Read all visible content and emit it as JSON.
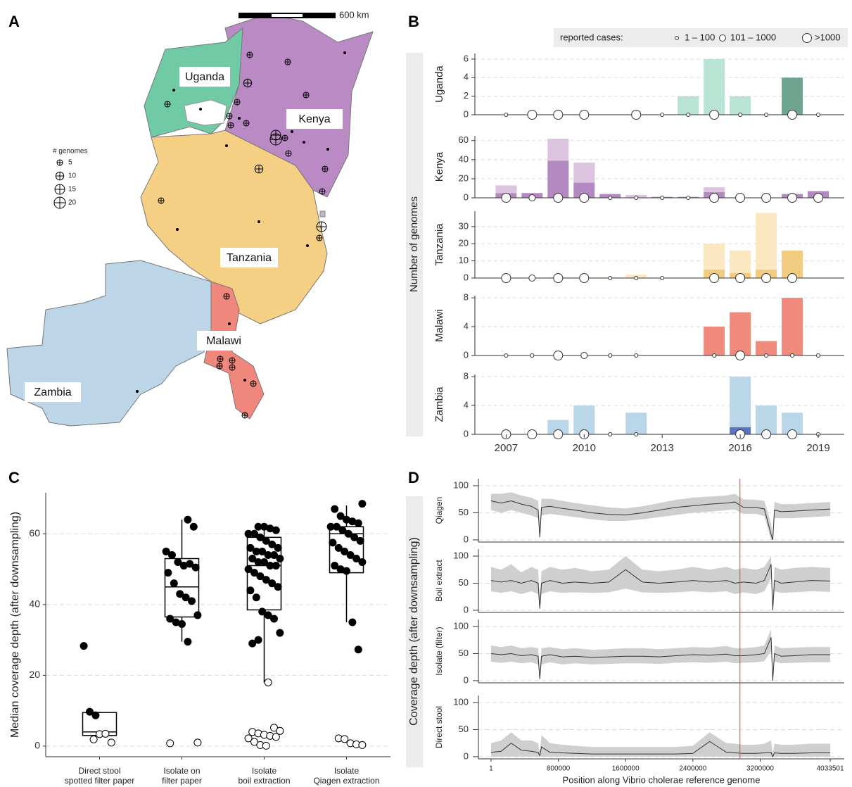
{
  "panel_labels": [
    "A",
    "B",
    "C",
    "D"
  ],
  "map": {
    "scale_label": "600 km",
    "legend": {
      "title": "# genomes",
      "sizes": [
        5,
        10,
        15,
        20
      ]
    },
    "countries": [
      {
        "name": "Uganda",
        "color": "#6fcaa5"
      },
      {
        "name": "Kenya",
        "color": "#b98ac4"
      },
      {
        "name": "Tanzania",
        "color": "#f5cf84"
      },
      {
        "name": "Malawi",
        "color": "#ef877c"
      },
      {
        "name": "Zambia",
        "color": "#bcd6e8"
      }
    ],
    "sites": [
      5,
      5,
      1,
      1,
      5,
      10,
      5,
      1,
      5,
      5,
      5,
      1,
      5,
      15,
      20,
      5,
      1,
      5,
      1,
      1,
      5,
      5,
      1,
      10,
      5,
      1,
      1,
      15,
      5,
      1,
      5,
      1,
      5,
      5,
      5,
      5,
      1,
      5,
      1,
      5
    ]
  },
  "chart_data": [
    {
      "type": "bar",
      "ylabel": "Number of genomes",
      "legend": {
        "title": "reported cases:",
        "labels": [
          "1 – 100",
          "101 – 1000",
          ">1000"
        ]
      },
      "x": [
        2007,
        2008,
        2009,
        2010,
        2011,
        2012,
        2013,
        2014,
        2015,
        2016,
        2017,
        2018,
        2019
      ],
      "xlim": [
        2005.8,
        2020
      ],
      "xticks": [
        2007,
        2010,
        2013,
        2016,
        2019
      ],
      "grid": true,
      "panels": [
        {
          "label": "Uganda",
          "ylim": [
            0,
            6.6
          ],
          "yticks": [
            0,
            2,
            4,
            6
          ],
          "series": [
            {
              "color": "#6fa58f",
              "values": [
                null,
                null,
                null,
                null,
                null,
                null,
                null,
                null,
                null,
                null,
                null,
                4,
                null
              ]
            },
            {
              "color": "#b9e3d3",
              "values": [
                null,
                null,
                null,
                null,
                null,
                null,
                null,
                2,
                6,
                2,
                null,
                null,
                null
              ]
            }
          ],
          "cases": [
            "1 – 100",
            ">1000",
            ">1000",
            ">1000",
            null,
            ">1000",
            "1 – 100",
            "1 – 100",
            ">1000",
            "1 – 100",
            "1 – 100",
            ">1000",
            "1 – 100"
          ]
        },
        {
          "label": "Kenya",
          "ylim": [
            0,
            65
          ],
          "yticks": [
            0,
            20,
            40,
            60
          ],
          "series": [
            {
              "color": "#b488c0",
              "values": [
                5,
                5,
                39,
                16,
                4,
                null,
                1,
                1,
                6,
                null,
                null,
                4,
                7
              ]
            },
            {
              "color": "#dcc4e0",
              "values": [
                8,
                null,
                23,
                21,
                null,
                3,
                null,
                null,
                5,
                null,
                null,
                null,
                null
              ]
            }
          ],
          "cases": [
            ">1000",
            "101 – 1000",
            ">1000",
            ">1000",
            "1 – 100",
            "1 – 100",
            "1 – 100",
            "1 – 100",
            ">1000",
            ">1000",
            ">1000",
            ">1000",
            ">1000"
          ]
        },
        {
          "label": "Tanzania",
          "ylim": [
            0,
            39
          ],
          "yticks": [
            0,
            10,
            20,
            30
          ],
          "series": [
            {
              "color": "#f2cc80",
              "values": [
                null,
                null,
                null,
                null,
                null,
                null,
                null,
                null,
                5,
                3,
                5,
                16,
                null
              ]
            },
            {
              "color": "#fbe7c0",
              "values": [
                null,
                null,
                0.5,
                null,
                0.5,
                2,
                null,
                null,
                15,
                13,
                33,
                null,
                null
              ]
            }
          ],
          "cases": [
            ">1000",
            "101 – 1000",
            ">1000",
            ">1000",
            "1 – 100",
            "1 – 100",
            "1 – 100",
            null,
            ">1000",
            ">1000",
            ">1000",
            ">1000",
            null
          ]
        },
        {
          "label": "Malawi",
          "ylim": [
            0,
            8.3
          ],
          "yticks": [
            0,
            4,
            8
          ],
          "series": [
            {
              "color": "#f08a7c",
              "values": [
                null,
                null,
                null,
                null,
                null,
                null,
                null,
                null,
                4,
                6,
                2,
                8,
                null
              ]
            }
          ],
          "cases": [
            "1 – 100",
            "1 – 100",
            ">1000",
            "101 – 1000",
            "1 – 100",
            "1 – 100",
            null,
            null,
            "1 – 100",
            ">1000",
            "1 – 100",
            "1 – 100",
            "1 – 100"
          ]
        },
        {
          "label": "Zambia",
          "ylim": [
            0,
            8.3
          ],
          "yticks": [
            0,
            4,
            8
          ],
          "series": [
            {
              "color": "#5a74c0",
              "values": [
                null,
                null,
                null,
                null,
                null,
                null,
                null,
                null,
                null,
                1,
                null,
                null,
                null
              ]
            },
            {
              "color": "#b9d7e8",
              "values": [
                null,
                null,
                2,
                4,
                null,
                3,
                null,
                null,
                null,
                7,
                4,
                3,
                null
              ]
            }
          ],
          "cases": [
            ">1000",
            ">1000",
            ">1000",
            ">1000",
            "1 – 100",
            "1 – 100",
            null,
            null,
            null,
            ">1000",
            ">1000",
            ">1000",
            "1 – 100"
          ]
        }
      ]
    },
    {
      "type": "box",
      "ylabel": "Median coverage depth (after downsampling)",
      "categories": [
        [
          "Direct stool",
          "spotted filter paper"
        ],
        [
          "Isolate on",
          "filter paper"
        ],
        [
          "Isolate",
          "boil extraction"
        ],
        [
          "Isolate",
          "Qiagen extraction"
        ]
      ],
      "ylim": [
        -3,
        71.6
      ],
      "yticks": [
        0,
        20,
        40,
        60
      ],
      "grid": true,
      "boxes": [
        {
          "whisker_low": 3,
          "q1": 3,
          "median": 4,
          "q3": 9.5,
          "whisker_high": 9.7
        },
        {
          "whisker_low": 29.5,
          "q1": 36.5,
          "median": 45,
          "q3": 53,
          "whisker_high": 64
        },
        {
          "whisker_low": 18,
          "q1": 38.5,
          "median": 51,
          "q3": 59,
          "whisker_high": 63
        },
        {
          "whisker_low": 35,
          "q1": 49,
          "median": 60,
          "q3": 62,
          "whisker_high": 68
        }
      ],
      "series": [
        {
          "color": "#000000",
          "fill": "#000000",
          "values": [
            [
              28.3,
              9.7,
              8.7
            ],
            [
              64,
              62,
              55,
              54,
              52,
              51,
              51.5,
              50.5,
              49,
              46,
              43,
              42,
              41,
              37,
              36,
              35,
              34.5,
              29.5
            ],
            [
              62,
              62,
              61.5,
              61,
              60,
              60,
              59,
              58,
              57,
              56,
              56,
              55,
              55,
              54,
              54,
              53,
              53,
              52,
              52,
              51,
              51,
              50,
              49,
              48,
              47,
              46,
              45,
              44,
              42,
              38,
              37,
              36,
              32,
              29,
              30
            ],
            [
              68.5,
              67,
              65,
              64,
              63.5,
              63,
              62,
              62,
              61,
              60,
              59,
              58,
              57.5,
              56,
              55,
              54,
              53,
              52,
              51,
              50,
              49.5,
              35,
              27.3
            ]
          ]
        },
        {
          "color": "#000000",
          "fill": "#ffffff",
          "values": [
            [
              1.9,
              3.4,
              3.5,
              1
            ],
            [
              1,
              0.8
            ],
            [
              18,
              5.2,
              4.3,
              4,
              3.6,
              3.2,
              2.9,
              2.6,
              2.2,
              1.2,
              0.3,
              0.1
            ],
            [
              2.2,
              2,
              0.8,
              0.5,
              0.3
            ]
          ]
        }
      ]
    },
    {
      "type": "line",
      "ylabel": "Coverage depth (after downsampling)",
      "xlabel": "Position along Vibrio cholerae reference genome",
      "x": [
        1,
        120000,
        240000,
        360000,
        480000,
        560000,
        580000,
        600000,
        700000,
        850000,
        1000000,
        1200000,
        1400000,
        1600000,
        1800000,
        2000000,
        2200000,
        2400000,
        2600000,
        2800000,
        2900000,
        3000000,
        3150000,
        3250000,
        3330000,
        3350000,
        3370000,
        3450000,
        3600000,
        3800000,
        4033501
      ],
      "xlim": [
        -150000,
        4200000
      ],
      "xticks": [
        1,
        800000,
        1600000,
        2400000,
        3200000,
        4033501
      ],
      "ylim": [
        -4,
        113
      ],
      "yticks": [
        0,
        50,
        100
      ],
      "vline": {
        "value": 2960000,
        "color": "#e0443c"
      },
      "line_color": "#333333",
      "band_color": "#cfcfcf",
      "grid": true,
      "panels": [
        {
          "label": "Qiagen",
          "mean": [
            72,
            68,
            72,
            66,
            62,
            55,
            5,
            60,
            62,
            58,
            55,
            50,
            47,
            46,
            50,
            55,
            60,
            63,
            66,
            68,
            70,
            60,
            60,
            57,
            10,
            0,
            55,
            52,
            53,
            55,
            57
          ],
          "low": [
            55,
            50,
            55,
            50,
            45,
            40,
            0,
            45,
            48,
            45,
            42,
            38,
            35,
            35,
            38,
            42,
            46,
            50,
            52,
            55,
            56,
            48,
            48,
            44,
            0,
            0,
            40,
            40,
            40,
            42,
            44
          ],
          "high": [
            85,
            85,
            88,
            82,
            78,
            72,
            25,
            76,
            76,
            72,
            68,
            64,
            60,
            58,
            62,
            68,
            74,
            78,
            80,
            82,
            85,
            75,
            74,
            72,
            30,
            10,
            70,
            66,
            66,
            68,
            70
          ]
        },
        {
          "label": "Boil extract",
          "mean": [
            55,
            52,
            55,
            50,
            55,
            50,
            3,
            50,
            55,
            50,
            52,
            50,
            52,
            75,
            52,
            50,
            52,
            55,
            52,
            55,
            50,
            52,
            50,
            55,
            85,
            0,
            55,
            50,
            52,
            55,
            54
          ],
          "low": [
            35,
            32,
            35,
            30,
            35,
            30,
            0,
            30,
            35,
            32,
            33,
            32,
            33,
            40,
            33,
            32,
            33,
            35,
            33,
            35,
            30,
            33,
            30,
            35,
            60,
            0,
            35,
            32,
            33,
            35,
            34
          ],
          "high": [
            80,
            75,
            85,
            70,
            80,
            75,
            20,
            72,
            80,
            75,
            78,
            72,
            75,
            100,
            75,
            72,
            75,
            80,
            75,
            80,
            75,
            78,
            75,
            80,
            100,
            15,
            80,
            75,
            78,
            80,
            78
          ]
        },
        {
          "label": "Isolate (filter)",
          "mean": [
            50,
            48,
            50,
            46,
            48,
            45,
            3,
            45,
            48,
            44,
            45,
            43,
            44,
            45,
            45,
            44,
            46,
            48,
            47,
            49,
            46,
            46,
            48,
            50,
            80,
            0,
            50,
            45,
            46,
            48,
            48
          ],
          "low": [
            35,
            33,
            35,
            32,
            34,
            30,
            0,
            30,
            34,
            30,
            32,
            30,
            31,
            32,
            32,
            31,
            33,
            34,
            33,
            35,
            32,
            33,
            34,
            36,
            55,
            0,
            35,
            32,
            33,
            34,
            34
          ],
          "high": [
            65,
            62,
            65,
            60,
            62,
            60,
            15,
            60,
            62,
            58,
            60,
            57,
            58,
            60,
            60,
            58,
            60,
            62,
            61,
            64,
            60,
            60,
            62,
            65,
            95,
            10,
            65,
            60,
            61,
            62,
            62
          ]
        },
        {
          "label": "Direct stool",
          "mean": [
            8,
            10,
            25,
            12,
            10,
            8,
            2,
            18,
            8,
            7,
            6,
            5,
            5,
            5,
            5,
            5,
            5,
            6,
            28,
            8,
            7,
            6,
            6,
            7,
            8,
            0,
            7,
            6,
            6,
            7,
            7
          ],
          "low": [
            0,
            0,
            0,
            0,
            0,
            0,
            0,
            0,
            0,
            0,
            0,
            0,
            0,
            0,
            0,
            0,
            0,
            0,
            0,
            0,
            0,
            0,
            0,
            0,
            0,
            0,
            0,
            0,
            0,
            0,
            0
          ],
          "high": [
            25,
            30,
            45,
            30,
            30,
            25,
            8,
            40,
            25,
            22,
            20,
            18,
            18,
            18,
            18,
            18,
            18,
            20,
            45,
            25,
            24,
            22,
            22,
            24,
            30,
            5,
            24,
            22,
            22,
            24,
            24
          ]
        }
      ]
    }
  ]
}
